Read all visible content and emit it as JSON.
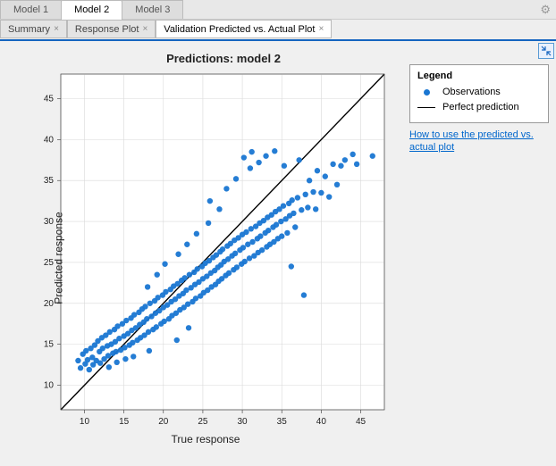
{
  "outer_tabs": {
    "items": [
      {
        "label": "Model 1",
        "active": false
      },
      {
        "label": "Model 2",
        "active": true
      },
      {
        "label": "Model 3",
        "active": false
      }
    ]
  },
  "inner_tabs": {
    "items": [
      {
        "label": "Summary",
        "active": false,
        "closable": true
      },
      {
        "label": "Response Plot",
        "active": false,
        "closable": true
      },
      {
        "label": "Validation Predicted vs. Actual Plot",
        "active": true,
        "closable": true
      }
    ]
  },
  "legend": {
    "title": "Legend",
    "items": [
      {
        "type": "marker",
        "label": "Observations",
        "color": "#1976d2"
      },
      {
        "type": "line",
        "label": "Perfect prediction",
        "color": "#000000"
      }
    ]
  },
  "help_link": "How to use the predicted vs. actual plot",
  "chart": {
    "type": "scatter",
    "title": "Predictions: model 2",
    "xlabel": "True response",
    "ylabel": "Predicted response",
    "xlim": [
      7,
      48
    ],
    "ylim": [
      7,
      48
    ],
    "xticks": [
      10,
      15,
      20,
      25,
      30,
      35,
      40,
      45
    ],
    "yticks": [
      10,
      15,
      20,
      25,
      30,
      35,
      40,
      45
    ],
    "title_fontsize": 13,
    "label_fontsize": 12,
    "tick_fontsize": 10,
    "background_color": "#ffffff",
    "grid_color": "#d9d9d9",
    "marker_color": "#1976d2",
    "marker_size": 3.2,
    "line_color": "#000000",
    "reference_line": {
      "x0": 7,
      "y0": 7,
      "x1": 48,
      "y1": 48
    },
    "points": [
      [
        9.2,
        13.0
      ],
      [
        9.5,
        12.1
      ],
      [
        9.8,
        13.8
      ],
      [
        10.1,
        12.6
      ],
      [
        10.2,
        14.2
      ],
      [
        10.4,
        13.1
      ],
      [
        10.6,
        11.9
      ],
      [
        10.8,
        14.5
      ],
      [
        11.0,
        13.4
      ],
      [
        11.1,
        12.5
      ],
      [
        11.3,
        14.9
      ],
      [
        11.5,
        13.0
      ],
      [
        11.7,
        15.4
      ],
      [
        11.9,
        14.1
      ],
      [
        12.0,
        12.7
      ],
      [
        12.2,
        15.8
      ],
      [
        12.3,
        14.5
      ],
      [
        12.5,
        13.2
      ],
      [
        12.7,
        16.1
      ],
      [
        12.9,
        14.8
      ],
      [
        13.0,
        13.6
      ],
      [
        13.1,
        12.2
      ],
      [
        13.2,
        16.5
      ],
      [
        13.4,
        15.0
      ],
      [
        13.6,
        13.9
      ],
      [
        13.8,
        16.8
      ],
      [
        13.9,
        15.3
      ],
      [
        14.0,
        14.1
      ],
      [
        14.1,
        12.8
      ],
      [
        14.2,
        17.2
      ],
      [
        14.4,
        15.7
      ],
      [
        14.6,
        14.3
      ],
      [
        14.8,
        17.5
      ],
      [
        15.0,
        16.0
      ],
      [
        15.1,
        14.6
      ],
      [
        15.2,
        13.2
      ],
      [
        15.3,
        17.9
      ],
      [
        15.5,
        16.3
      ],
      [
        15.7,
        14.9
      ],
      [
        15.9,
        18.2
      ],
      [
        16.0,
        16.7
      ],
      [
        16.1,
        15.2
      ],
      [
        16.2,
        13.5
      ],
      [
        16.3,
        18.6
      ],
      [
        16.5,
        17.0
      ],
      [
        16.7,
        15.5
      ],
      [
        16.9,
        18.9
      ],
      [
        17.0,
        17.4
      ],
      [
        17.1,
        15.8
      ],
      [
        17.3,
        19.3
      ],
      [
        17.5,
        17.7
      ],
      [
        17.6,
        16.1
      ],
      [
        17.7,
        19.6
      ],
      [
        17.9,
        18.1
      ],
      [
        18.0,
        22.0
      ],
      [
        18.1,
        16.5
      ],
      [
        18.2,
        14.2
      ],
      [
        18.3,
        20.0
      ],
      [
        18.5,
        18.4
      ],
      [
        18.7,
        16.8
      ],
      [
        18.9,
        20.3
      ],
      [
        19.0,
        18.8
      ],
      [
        19.1,
        17.1
      ],
      [
        19.2,
        23.5
      ],
      [
        19.3,
        20.7
      ],
      [
        19.5,
        19.1
      ],
      [
        19.7,
        17.5
      ],
      [
        19.9,
        21.0
      ],
      [
        20.0,
        19.5
      ],
      [
        20.1,
        17.8
      ],
      [
        20.2,
        24.8
      ],
      [
        20.3,
        21.4
      ],
      [
        20.5,
        19.8
      ],
      [
        20.7,
        18.1
      ],
      [
        20.9,
        21.7
      ],
      [
        21.0,
        20.2
      ],
      [
        21.1,
        18.5
      ],
      [
        21.3,
        22.1
      ],
      [
        21.5,
        20.5
      ],
      [
        21.6,
        18.8
      ],
      [
        21.7,
        15.5
      ],
      [
        21.8,
        22.4
      ],
      [
        21.9,
        26.0
      ],
      [
        22.0,
        20.9
      ],
      [
        22.1,
        19.2
      ],
      [
        22.3,
        22.8
      ],
      [
        22.5,
        21.2
      ],
      [
        22.6,
        19.5
      ],
      [
        22.7,
        23.1
      ],
      [
        22.9,
        21.6
      ],
      [
        23.0,
        27.2
      ],
      [
        23.1,
        19.9
      ],
      [
        23.2,
        17.0
      ],
      [
        23.3,
        23.5
      ],
      [
        23.5,
        21.9
      ],
      [
        23.7,
        20.2
      ],
      [
        23.9,
        23.8
      ],
      [
        24.0,
        22.3
      ],
      [
        24.1,
        20.6
      ],
      [
        24.2,
        28.5
      ],
      [
        24.3,
        24.2
      ],
      [
        24.5,
        22.6
      ],
      [
        24.7,
        20.9
      ],
      [
        24.9,
        24.5
      ],
      [
        25.0,
        23.0
      ],
      [
        25.1,
        21.3
      ],
      [
        25.3,
        24.9
      ],
      [
        25.5,
        23.3
      ],
      [
        25.6,
        21.6
      ],
      [
        25.7,
        29.8
      ],
      [
        25.8,
        25.2
      ],
      [
        25.9,
        32.5
      ],
      [
        26.0,
        23.7
      ],
      [
        26.1,
        22.0
      ],
      [
        26.3,
        25.6
      ],
      [
        26.5,
        24.0
      ],
      [
        26.6,
        22.3
      ],
      [
        26.7,
        25.9
      ],
      [
        26.9,
        24.4
      ],
      [
        27.0,
        22.7
      ],
      [
        27.1,
        31.5
      ],
      [
        27.2,
        26.3
      ],
      [
        27.3,
        24.7
      ],
      [
        27.4,
        23.0
      ],
      [
        27.5,
        26.6
      ],
      [
        27.7,
        25.1
      ],
      [
        27.9,
        23.4
      ],
      [
        28.0,
        34.0
      ],
      [
        28.1,
        27.0
      ],
      [
        28.2,
        25.4
      ],
      [
        28.3,
        23.7
      ],
      [
        28.5,
        27.3
      ],
      [
        28.7,
        25.8
      ],
      [
        28.9,
        24.1
      ],
      [
        29.0,
        27.7
      ],
      [
        29.1,
        26.1
      ],
      [
        29.2,
        35.2
      ],
      [
        29.3,
        24.4
      ],
      [
        29.5,
        28.0
      ],
      [
        29.7,
        26.5
      ],
      [
        29.9,
        24.8
      ],
      [
        30.0,
        28.4
      ],
      [
        30.1,
        26.8
      ],
      [
        30.2,
        37.8
      ],
      [
        30.3,
        25.1
      ],
      [
        30.5,
        28.7
      ],
      [
        30.7,
        27.2
      ],
      [
        30.9,
        25.5
      ],
      [
        31.0,
        36.5
      ],
      [
        31.1,
        29.1
      ],
      [
        31.2,
        38.5
      ],
      [
        31.3,
        27.5
      ],
      [
        31.5,
        25.8
      ],
      [
        31.7,
        29.4
      ],
      [
        31.9,
        27.9
      ],
      [
        32.0,
        26.2
      ],
      [
        32.1,
        37.2
      ],
      [
        32.2,
        29.8
      ],
      [
        32.3,
        28.2
      ],
      [
        32.5,
        26.5
      ],
      [
        32.7,
        30.1
      ],
      [
        32.9,
        28.6
      ],
      [
        33.0,
        38.0
      ],
      [
        33.1,
        26.9
      ],
      [
        33.2,
        30.5
      ],
      [
        33.3,
        28.9
      ],
      [
        33.5,
        27.2
      ],
      [
        33.7,
        30.8
      ],
      [
        33.9,
        29.3
      ],
      [
        34.0,
        27.5
      ],
      [
        34.1,
        38.6
      ],
      [
        34.2,
        31.2
      ],
      [
        34.3,
        29.6
      ],
      [
        34.5,
        27.9
      ],
      [
        34.7,
        31.5
      ],
      [
        34.9,
        30.0
      ],
      [
        35.0,
        28.2
      ],
      [
        35.2,
        31.9
      ],
      [
        35.3,
        36.8
      ],
      [
        35.5,
        30.3
      ],
      [
        35.7,
        28.6
      ],
      [
        35.9,
        32.2
      ],
      [
        36.0,
        30.7
      ],
      [
        36.2,
        24.5
      ],
      [
        36.3,
        32.6
      ],
      [
        36.5,
        31.0
      ],
      [
        36.7,
        29.3
      ],
      [
        37.0,
        32.9
      ],
      [
        37.2,
        37.5
      ],
      [
        37.5,
        31.4
      ],
      [
        37.8,
        21.0
      ],
      [
        38.0,
        33.3
      ],
      [
        38.3,
        31.7
      ],
      [
        38.5,
        35.0
      ],
      [
        39.0,
        33.6
      ],
      [
        39.3,
        31.5
      ],
      [
        39.5,
        36.2
      ],
      [
        40.0,
        33.5
      ],
      [
        40.5,
        35.5
      ],
      [
        41.0,
        33.0
      ],
      [
        41.5,
        37.0
      ],
      [
        42.0,
        34.5
      ],
      [
        42.5,
        36.8
      ],
      [
        43.0,
        37.5
      ],
      [
        44.0,
        38.2
      ],
      [
        44.5,
        37.0
      ],
      [
        46.5,
        38.0
      ]
    ]
  }
}
